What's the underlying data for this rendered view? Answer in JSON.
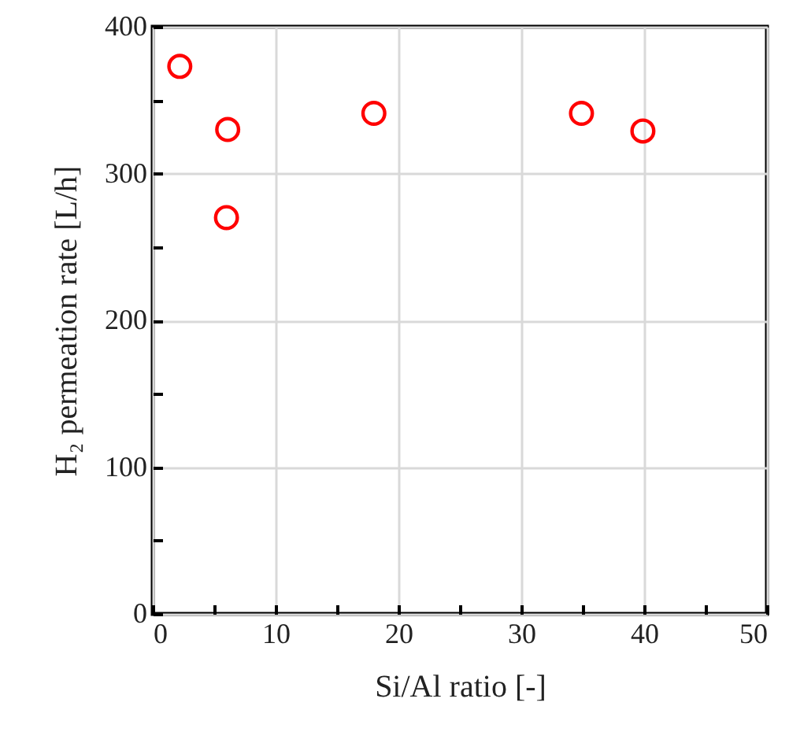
{
  "chart_data": {
    "type": "scatter",
    "xlabel": "Si/Al ratio [-]",
    "ylabel": "H₂ permeation rate [L/h]",
    "x": [
      2.2,
      6.1,
      6.0,
      18,
      34.9,
      39.9
    ],
    "series": [
      {
        "color": "#ff0000",
        "values": [
          373,
          330,
          270,
          341,
          341,
          329
        ]
      }
    ],
    "marker": "circle",
    "xlim": [
      0,
      50
    ],
    "xticks": [
      0,
      {
        "value": 5,
        "label": null
      },
      10,
      {
        "value": 15,
        "label": null
      },
      20,
      {
        "value": 25,
        "label": null
      },
      30,
      {
        "value": 35,
        "label": null
      },
      40,
      {
        "value": 45,
        "label": null
      },
      50
    ],
    "ylim": [
      0,
      400
    ],
    "yticks": [
      0,
      {
        "value": 50,
        "label": null
      },
      100,
      {
        "value": 150,
        "label": null
      },
      200,
      {
        "value": 250,
        "label": null
      },
      300,
      {
        "value": 350,
        "label": null
      },
      400
    ],
    "grid": true
  }
}
